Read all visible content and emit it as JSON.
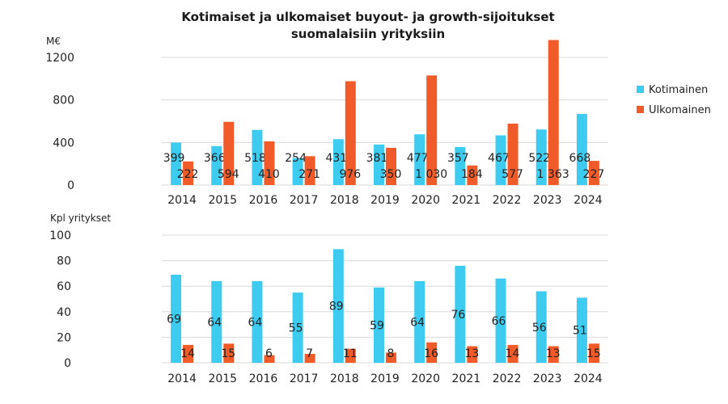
{
  "title_line1": "Kotimaiset ja ulkomaiset buyout- ja growth-sijoitukset",
  "title_line2": "suomalaisiin yrityksiin",
  "colors": {
    "kotimainen": "#3ecbf0",
    "ulkomainen": "#f15a29",
    "grid": "#d9d9d9"
  },
  "legend": {
    "position": "right",
    "items": [
      "Kotimainen",
      "Ulkomainen"
    ]
  },
  "chart_data": [
    {
      "type": "bar",
      "ylabel": "M€",
      "ylim": [
        0,
        1200
      ],
      "yticks": [
        0,
        400,
        800,
        1200
      ],
      "ytick_labels": [
        "0",
        "400",
        "800",
        "1200"
      ],
      "grid": true,
      "categories": [
        "2014",
        "2015",
        "2016",
        "2017",
        "2018",
        "2019",
        "2020",
        "2021",
        "2022",
        "2023",
        "2024"
      ],
      "series": [
        {
          "name": "Kotimainen",
          "values": [
            399,
            366,
            518,
            254,
            431,
            381,
            477,
            357,
            467,
            522,
            668
          ],
          "labels": [
            "399",
            "366",
            "518",
            "254",
            "431",
            "381",
            "477",
            "357",
            "467",
            "522",
            "668"
          ]
        },
        {
          "name": "Ulkomainen",
          "values": [
            222,
            594,
            410,
            271,
            976,
            350,
            1030,
            184,
            577,
            1363,
            227
          ],
          "labels": [
            "222",
            "594",
            "410",
            "271",
            "976",
            "350",
            "1 030",
            "184",
            "577",
            "1 363",
            "227"
          ]
        }
      ]
    },
    {
      "type": "bar",
      "ylabel": "Kpl yritykset",
      "ylim": [
        0,
        100
      ],
      "yticks": [
        0,
        20,
        40,
        60,
        80,
        100
      ],
      "ytick_labels": [
        "0",
        "20",
        "40",
        "60",
        "80",
        "100"
      ],
      "grid": true,
      "categories": [
        "2014",
        "2015",
        "2016",
        "2017",
        "2018",
        "2019",
        "2020",
        "2021",
        "2022",
        "2023",
        "2024"
      ],
      "series": [
        {
          "name": "Kotimainen",
          "values": [
            69,
            64,
            64,
            55,
            89,
            59,
            64,
            76,
            66,
            56,
            51
          ],
          "labels": [
            "69",
            "64",
            "64",
            "55",
            "89",
            "59",
            "64",
            "76",
            "66",
            "56",
            "51"
          ]
        },
        {
          "name": "Ulkomainen",
          "values": [
            14,
            15,
            6,
            7,
            11,
            8,
            16,
            13,
            14,
            13,
            15
          ],
          "labels": [
            "14",
            "15",
            "6",
            "7",
            "11",
            "8",
            "16",
            "13",
            "14",
            "13",
            "15"
          ]
        }
      ]
    }
  ]
}
